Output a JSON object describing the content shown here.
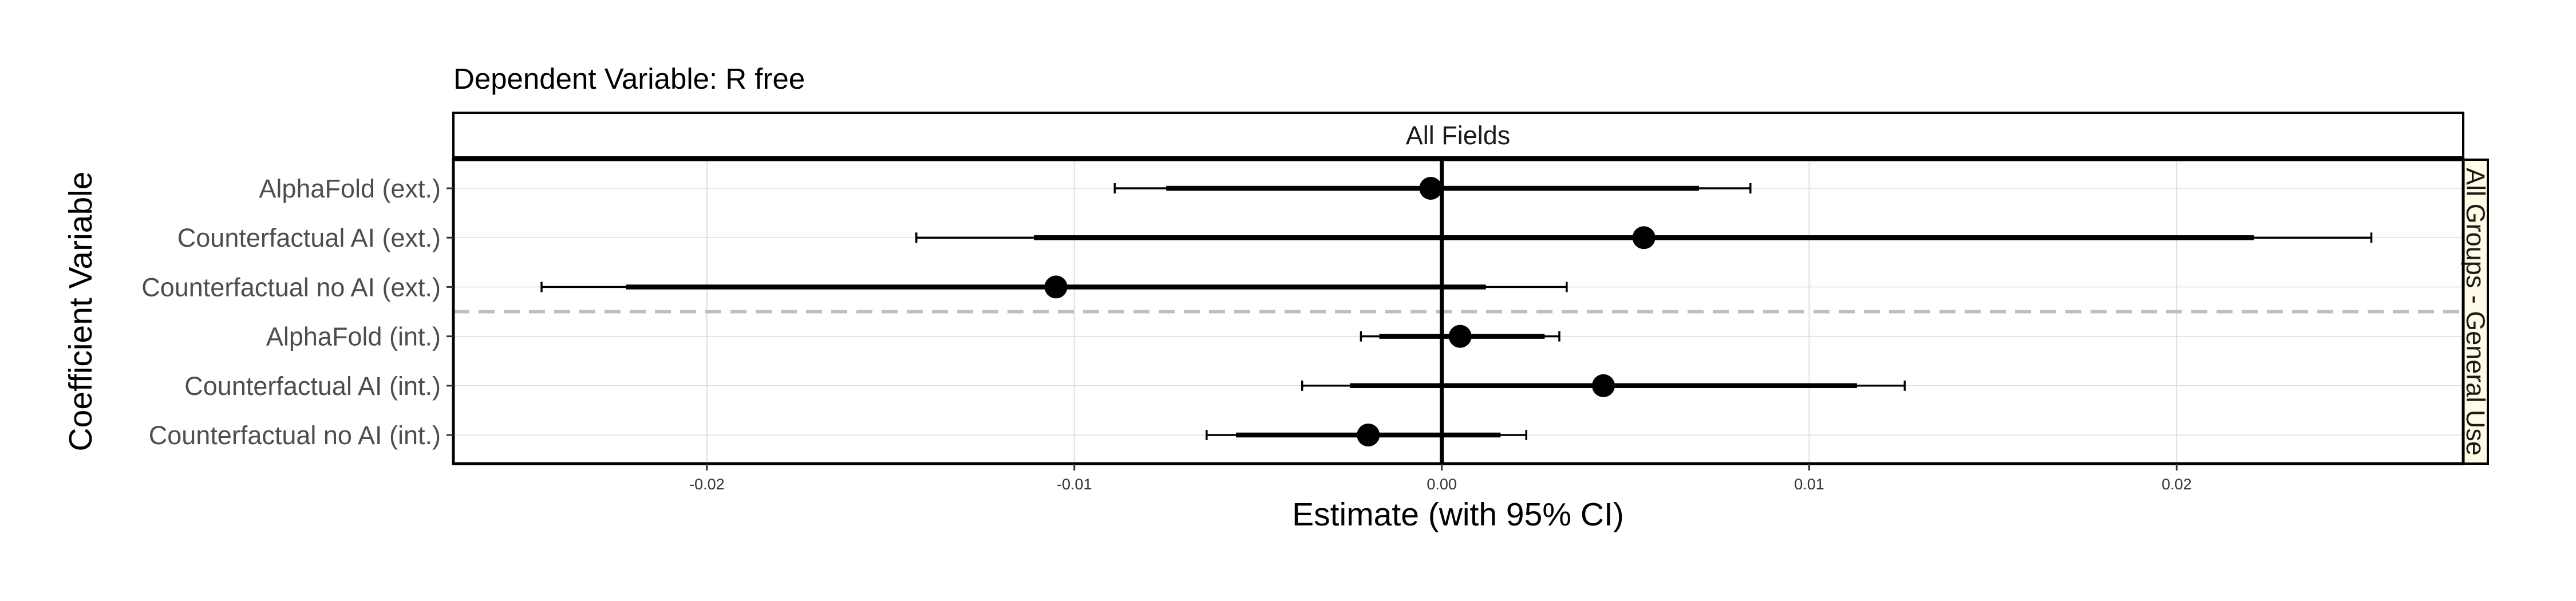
{
  "chart_data": {
    "type": "forest",
    "title": "Dependent Variable: R free",
    "xlabel": "Estimate (with 95% CI)",
    "ylabel": "Coefficient Variable",
    "facet_top": "All Fields",
    "facet_right": "All Groups - General Use",
    "xlim": [
      -0.0269,
      0.0278
    ],
    "x_ticks": [
      -0.02,
      -0.01,
      0,
      0.01,
      0.02
    ],
    "x_tick_labels": [
      "-0.02",
      "-0.01",
      "0.00",
      "0.01",
      "0.02"
    ],
    "grid": true,
    "reference_line": 0,
    "categories": [
      "AlphaFold (ext.)",
      "Counterfactual AI (ext.)",
      "Counterfactual no AI (ext.)",
      "AlphaFold (int.)",
      "Counterfactual AI (int.)",
      "Counterfactual no AI (int.)"
    ],
    "estimates": [
      -0.0003,
      0.0055,
      -0.0105,
      0.0005,
      0.0044,
      -0.002
    ],
    "ci_inner_low": [
      -0.0075,
      -0.0111,
      -0.0222,
      -0.0017,
      -0.0025,
      -0.0056
    ],
    "ci_inner_high": [
      0.007,
      0.0221,
      0.0012,
      0.0028,
      0.0113,
      0.0016
    ],
    "ci_low": [
      -0.0089,
      -0.0143,
      -0.0245,
      -0.0022,
      -0.0038,
      -0.0064
    ],
    "ci_high": [
      0.0084,
      0.0253,
      0.0034,
      0.0032,
      0.0126,
      0.0023
    ],
    "separator_between": [
      2,
      3
    ]
  },
  "colors": {
    "points": "#000000",
    "grid": "#dedede",
    "strip_top_fill": "#ffffff",
    "strip_right_fill": "#fffbe6",
    "separator": "#bfbfbf"
  }
}
